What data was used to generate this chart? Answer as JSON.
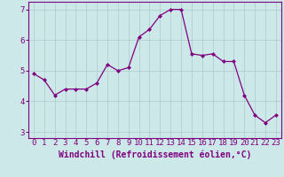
{
  "x": [
    0,
    1,
    2,
    3,
    4,
    5,
    6,
    7,
    8,
    9,
    10,
    11,
    12,
    13,
    14,
    15,
    16,
    17,
    18,
    19,
    20,
    21,
    22,
    23
  ],
  "y": [
    4.9,
    4.7,
    4.2,
    4.4,
    4.4,
    4.4,
    4.6,
    5.2,
    5.0,
    5.1,
    6.1,
    6.35,
    6.8,
    7.0,
    7.0,
    5.55,
    5.5,
    5.55,
    5.3,
    5.3,
    4.2,
    3.55,
    3.3,
    3.55
  ],
  "line_color": "#800080",
  "marker": "D",
  "marker_size": 2.0,
  "bg_color": "#cce8e8",
  "grid_color": "#aacccc",
  "xlabel": "Windchill (Refroidissement éolien,°C)",
  "xlim": [
    -0.5,
    23.5
  ],
  "ylim": [
    2.8,
    7.25
  ],
  "yticks": [
    3,
    4,
    5,
    6,
    7
  ],
  "xticks": [
    0,
    1,
    2,
    3,
    4,
    5,
    6,
    7,
    8,
    9,
    10,
    11,
    12,
    13,
    14,
    15,
    16,
    17,
    18,
    19,
    20,
    21,
    22,
    23
  ],
  "tick_color": "#800080",
  "label_color": "#800080",
  "tick_fontsize": 6.5,
  "xlabel_fontsize": 7.0
}
